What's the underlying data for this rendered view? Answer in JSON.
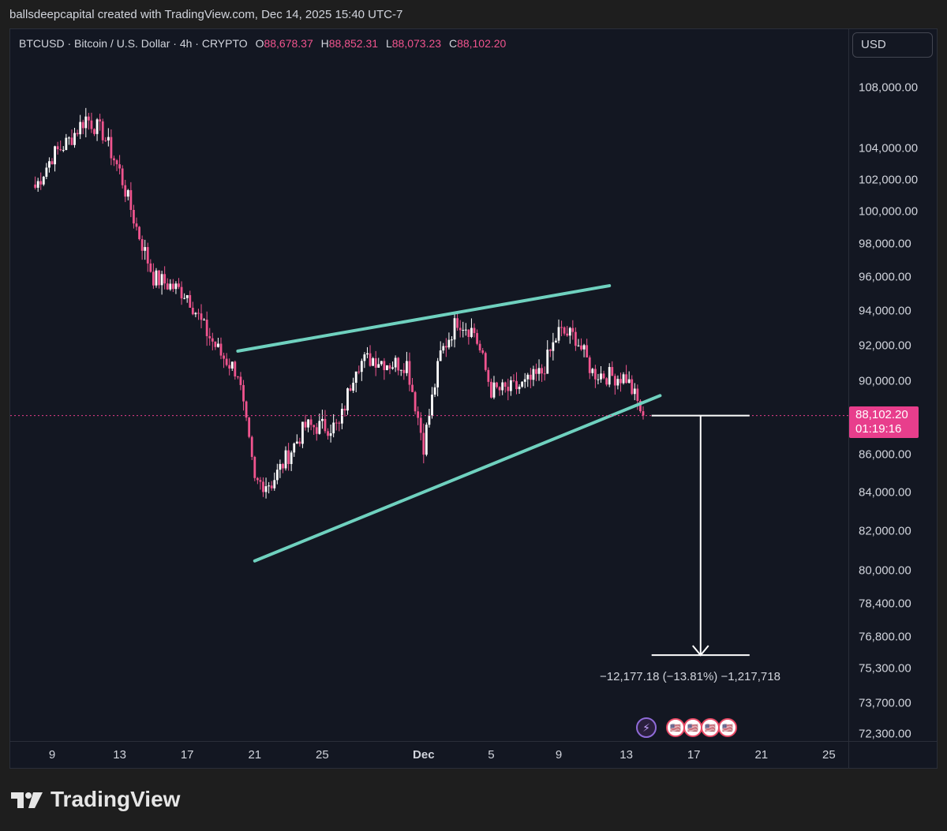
{
  "header": {
    "attribution": "ballsdeepcapital created with TradingView.com, Dec 14, 2025 15:40 UTC-7"
  },
  "legend": {
    "symbol": "BTCUSD · Bitcoin / U.S. Dollar · 4h · CRYPTO",
    "o_key": "O",
    "o_val": "88,678.37",
    "h_key": "H",
    "h_val": "88,852.31",
    "l_key": "L",
    "l_val": "88,073.23",
    "c_key": "C",
    "c_val": "88,102.20"
  },
  "currency_button": "USD",
  "price_axis": [
    "108,000.00",
    "104,000.00",
    "102,000.00",
    "100,000.00",
    "98,000.00",
    "96,000.00",
    "94,000.00",
    "92,000.00",
    "90,000.00",
    "86,000.00",
    "84,000.00",
    "82,000.00",
    "80,000.00",
    "78,400.00",
    "76,800.00",
    "75,300.00",
    "73,700.00",
    "72,300.00"
  ],
  "last_price": {
    "price": "88,102.20",
    "countdown": "01:19:16"
  },
  "time_axis": [
    "9",
    "13",
    "17",
    "21",
    "25",
    "Dec",
    "5",
    "9",
    "13",
    "17",
    "21",
    "25"
  ],
  "measure": {
    "label": "−12,177.18 (−13.81%) −1,217,718"
  },
  "brand": {
    "name": "TradingView"
  },
  "colors": {
    "up": "#ffffff",
    "down": "#f0548e",
    "trendline": "#6fd1bf",
    "background": "#131722",
    "badge": "#e83e8c",
    "dotted_line": "#e83e8c"
  },
  "chart_data": {
    "type": "candlestick",
    "symbol": "BTCUSD",
    "interval": "4h",
    "log_scale": true,
    "ylim": [
      72300,
      110000
    ],
    "last_close": 88102.2,
    "x_ticks": [
      "9",
      "13",
      "17",
      "21",
      "25",
      "Dec",
      "5",
      "9",
      "13",
      "17",
      "21",
      "25"
    ],
    "y_ticks": [
      108000,
      104000,
      102000,
      100000,
      98000,
      96000,
      94000,
      92000,
      90000,
      86000,
      84000,
      82000,
      80000,
      78400,
      76800,
      75300,
      73700,
      72300
    ],
    "anchor_closes": [
      [
        "Nov 8",
        101500
      ],
      [
        "Nov 9",
        103500
      ],
      [
        "Nov 10",
        104500
      ],
      [
        "Nov 11",
        106000
      ],
      [
        "Nov 12",
        105000
      ],
      [
        "Nov 13",
        102500
      ],
      [
        "Nov 14",
        99000
      ],
      [
        "Nov 15",
        96000
      ],
      [
        "Nov 16",
        95500
      ],
      [
        "Nov 17",
        95000
      ],
      [
        "Nov 18",
        93000
      ],
      [
        "Nov 19",
        91500
      ],
      [
        "Nov 20",
        90500
      ],
      [
        "Nov 21",
        84500
      ],
      [
        "Nov 22",
        84500
      ],
      [
        "Nov 23",
        86000
      ],
      [
        "Nov 24",
        87500
      ],
      [
        "Nov 25",
        87500
      ],
      [
        "Nov 26",
        87500
      ],
      [
        "Nov 27",
        91000
      ],
      [
        "Nov 28",
        91300
      ],
      [
        "Nov 29",
        91000
      ],
      [
        "Nov 30",
        91000
      ],
      [
        "Dec 1",
        86500
      ],
      [
        "Dec 2",
        91500
      ],
      [
        "Dec 3",
        93500
      ],
      [
        "Dec 4",
        92800
      ],
      [
        "Dec 5",
        89500
      ],
      [
        "Dec 6",
        89500
      ],
      [
        "Dec 7",
        89800
      ],
      [
        "Dec 8",
        90500
      ],
      [
        "Dec 9",
        92800
      ],
      [
        "Dec 10",
        92500
      ],
      [
        "Dec 11",
        90500
      ],
      [
        "Dec 12",
        90300
      ],
      [
        "Dec 13",
        90200
      ],
      [
        "Dec 14",
        88102.2
      ]
    ],
    "trendlines": [
      {
        "name": "",
        "from": [
          "Nov 20",
          91700
        ],
        "to": [
          "Dec 12",
          95500
        ]
      },
      {
        "name": "",
        "from": [
          "Nov 21",
          80500
        ],
        "to": [
          "Dec 15",
          89200
        ]
      }
    ],
    "measure": {
      "from_price": 88102.2,
      "change": -12177.18,
      "change_pct": -13.81,
      "ticks": -1217718
    }
  }
}
